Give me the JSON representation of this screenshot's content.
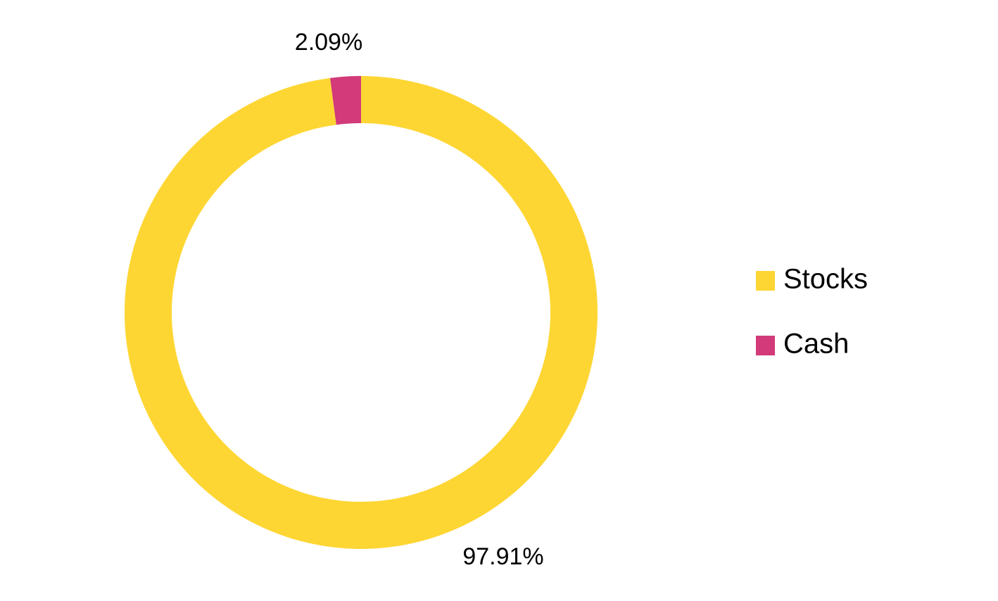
{
  "chart_data": {
    "type": "pie",
    "donut": true,
    "categories": [
      "Stocks",
      "Cash"
    ],
    "values": [
      97.91,
      2.09
    ],
    "value_labels": [
      "97.91%",
      "2.09%"
    ],
    "colors": [
      "#fed633",
      "#d23a7a"
    ],
    "legend": "right"
  }
}
